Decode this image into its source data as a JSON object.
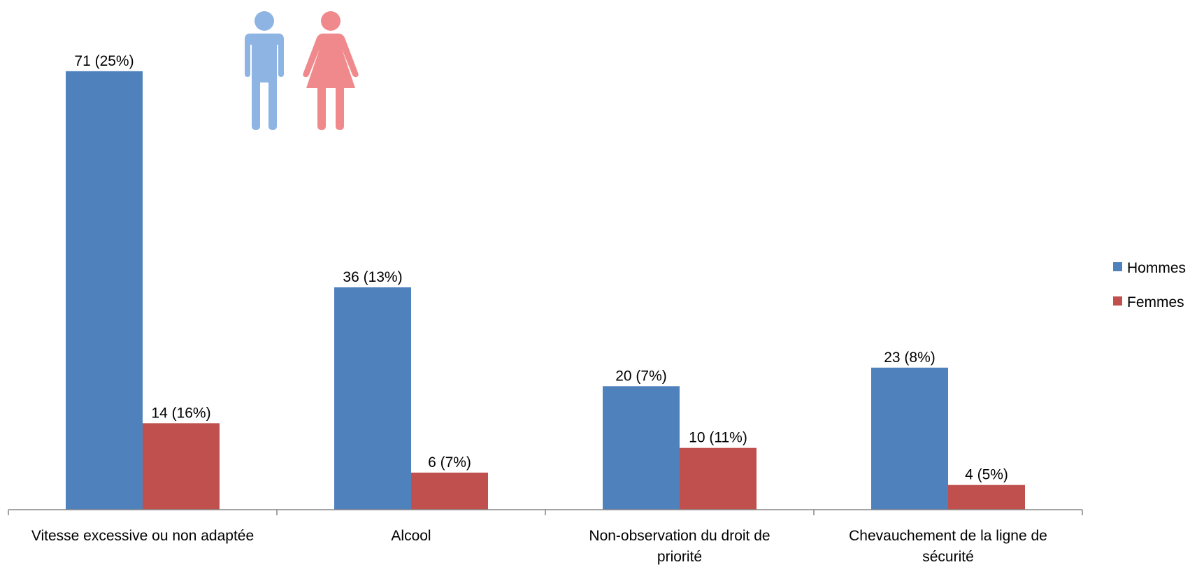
{
  "chart_data": {
    "type": "bar",
    "categories": [
      [
        "Vitesse excessive ou non adaptée"
      ],
      [
        "Alcool"
      ],
      [
        "Non-observation du droit de",
        "priorité"
      ],
      [
        "Chevauchement de la ligne de",
        "sécurité"
      ]
    ],
    "series": [
      {
        "name": "Hommes",
        "color": "#4F81BD",
        "values": [
          71,
          36,
          20,
          23
        ],
        "labels": [
          "71 (25%)",
          "36 (13%)",
          "20 (7%)",
          "23 (8%)"
        ]
      },
      {
        "name": "Femmes",
        "color": "#C0504D",
        "values": [
          14,
          6,
          10,
          4
        ],
        "labels": [
          "14 (16%)",
          "6 (7%)",
          "10 (11%)",
          "4 (5%)"
        ]
      }
    ],
    "ylim": [
      0,
      72
    ],
    "grid": false,
    "legend": "right",
    "icons": [
      {
        "name": "man-icon",
        "color": "#8EB4E3"
      },
      {
        "name": "woman-icon",
        "color": "#F0898C"
      }
    ]
  }
}
